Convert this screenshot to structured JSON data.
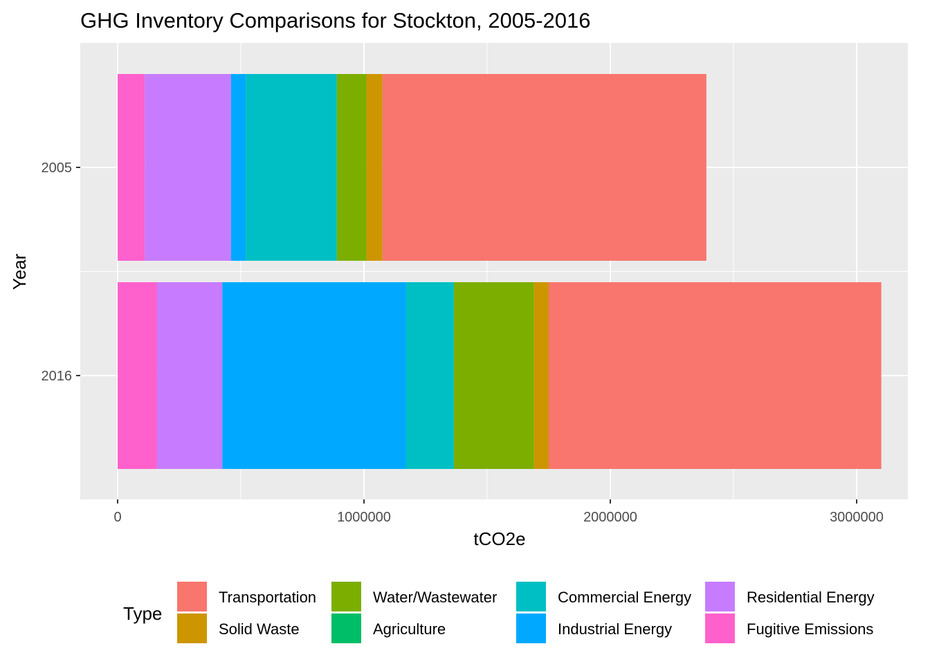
{
  "chart_data": {
    "type": "bar",
    "orientation": "horizontal",
    "stacked": true,
    "title": "GHG Inventory Comparisons for Stockton, 2005-2016",
    "xlabel": "tCO2e",
    "ylabel": "Year",
    "categories": [
      "2005",
      "2016"
    ],
    "xlim": [
      -150000,
      3150000
    ],
    "x_ticks": [
      0,
      1000000,
      2000000,
      3000000
    ],
    "x_tick_labels": [
      "0",
      "1000000",
      "2000000",
      "3000000"
    ],
    "grid": true,
    "legend_title": "Type",
    "legend_position": "bottom",
    "stack_order": [
      "Fugitive Emissions",
      "Residential Energy",
      "Industrial Energy",
      "Commercial Energy",
      "Agriculture",
      "Water/Wastewater",
      "Solid Waste",
      "Transportation"
    ],
    "series": [
      {
        "name": "Transportation",
        "color": "#F8766D",
        "values": [
          1315000,
          1350000
        ]
      },
      {
        "name": "Solid Waste",
        "color": "#CD9600",
        "values": [
          65000,
          60000
        ]
      },
      {
        "name": "Water/Wastewater",
        "color": "#7CAE00",
        "values": [
          120000,
          325000
        ]
      },
      {
        "name": "Agriculture",
        "color": "#00BE67",
        "values": [
          0,
          0
        ]
      },
      {
        "name": "Commercial Energy",
        "color": "#00BFC4",
        "values": [
          370000,
          195000
        ]
      },
      {
        "name": "Industrial Energy",
        "color": "#00A9FF",
        "values": [
          60000,
          745000
        ]
      },
      {
        "name": "Residential Energy",
        "color": "#C77CFF",
        "values": [
          350000,
          265000
        ]
      },
      {
        "name": "Fugitive Emissions",
        "color": "#FF61CC",
        "values": [
          110000,
          160000
        ]
      }
    ]
  },
  "legend": {
    "title": "Type",
    "items": [
      {
        "label": "Transportation",
        "color": "#F8766D"
      },
      {
        "label": "Solid Waste",
        "color": "#CD9600"
      },
      {
        "label": "Water/Wastewater",
        "color": "#7CAE00"
      },
      {
        "label": "Agriculture",
        "color": "#00BE67"
      },
      {
        "label": "Commercial Energy",
        "color": "#00BFC4"
      },
      {
        "label": "Industrial Energy",
        "color": "#00A9FF"
      },
      {
        "label": "Residential Energy",
        "color": "#C77CFF"
      },
      {
        "label": "Fugitive Emissions",
        "color": "#FF61CC"
      }
    ]
  },
  "colors": {
    "panel_background": "#EBEBEB",
    "grid_major": "#FFFFFF",
    "tick_text": "#4D4D4D"
  }
}
